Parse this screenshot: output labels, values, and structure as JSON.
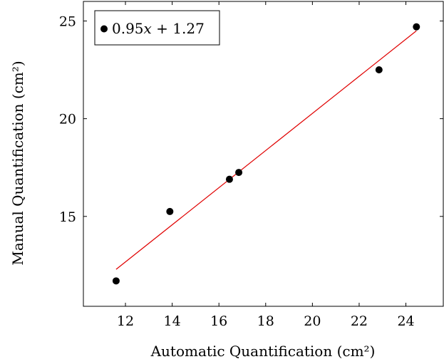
{
  "chart_data": {
    "type": "scatter",
    "title": "",
    "xlabel": "Automatic Quantification (cm²)",
    "ylabel": "Manual Quantification (cm²)",
    "xlim": [
      10.2,
      25.6
    ],
    "ylim": [
      10.4,
      26.0
    ],
    "xticks": [
      12,
      14,
      16,
      18,
      20,
      22,
      24
    ],
    "yticks": [
      15,
      20,
      25
    ],
    "xtick_labels": [
      "12",
      "14",
      "16",
      "18",
      "20",
      "22",
      "24"
    ],
    "ytick_labels": [
      "15",
      "20",
      "25"
    ],
    "grid": false,
    "legend_position": "top-left",
    "series": [
      {
        "name": "0.95x + 1.27",
        "type": "scatter",
        "color": "#000000",
        "x": [
          11.6,
          13.9,
          16.45,
          16.85,
          22.85,
          24.45
        ],
        "y": [
          11.7,
          15.25,
          16.9,
          17.25,
          22.5,
          24.7
        ]
      },
      {
        "type": "line",
        "color": "#e00000",
        "slope": 0.95,
        "intercept": 1.27,
        "x_range": [
          11.6,
          24.45
        ]
      }
    ]
  }
}
